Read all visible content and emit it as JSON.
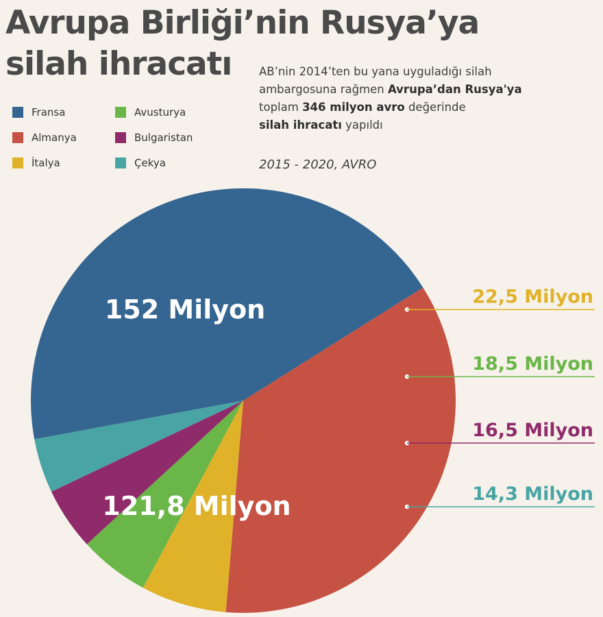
{
  "title_line1": "Avrupa Birliği’nin Rusya’ya",
  "title_line2": "silah ihracatı",
  "description": {
    "p1": "AB’nin 2014’ten bu yana uyguladığı silah",
    "p2a": "ambargosuna rağmen ",
    "p2b": "Avrupa’dan Rusya'ya",
    "p3a": "toplam ",
    "p3b": "346 milyon avro",
    "p3c": " değerinde",
    "p4a": "silah ihracatı",
    "p4b": " yapıldı"
  },
  "period": "2015 - 2020, AVRO",
  "chart_data": {
    "type": "pie",
    "unit": "Milyon",
    "slices": [
      {
        "name": "Fransa",
        "value": 152,
        "label": "152 Milyon",
        "color": "#356591"
      },
      {
        "name": "Almanya",
        "value": 121.8,
        "label": "121,8 Milyon",
        "color": "#c65243"
      },
      {
        "name": "İtalya",
        "value": 22.5,
        "label": "22,5 Milyon",
        "color": "#e0b229"
      },
      {
        "name": "Avusturya",
        "value": 18.5,
        "label": "18,5 Milyon",
        "color": "#6ab648"
      },
      {
        "name": "Bulgaristan",
        "value": 16.5,
        "label": "16,5 Milyon",
        "color": "#8f2b6a"
      },
      {
        "name": "Çekya",
        "value": 14.3,
        "label": "14,3 Milyon",
        "color": "#48a5a4"
      }
    ],
    "legend_position": "top-left"
  }
}
